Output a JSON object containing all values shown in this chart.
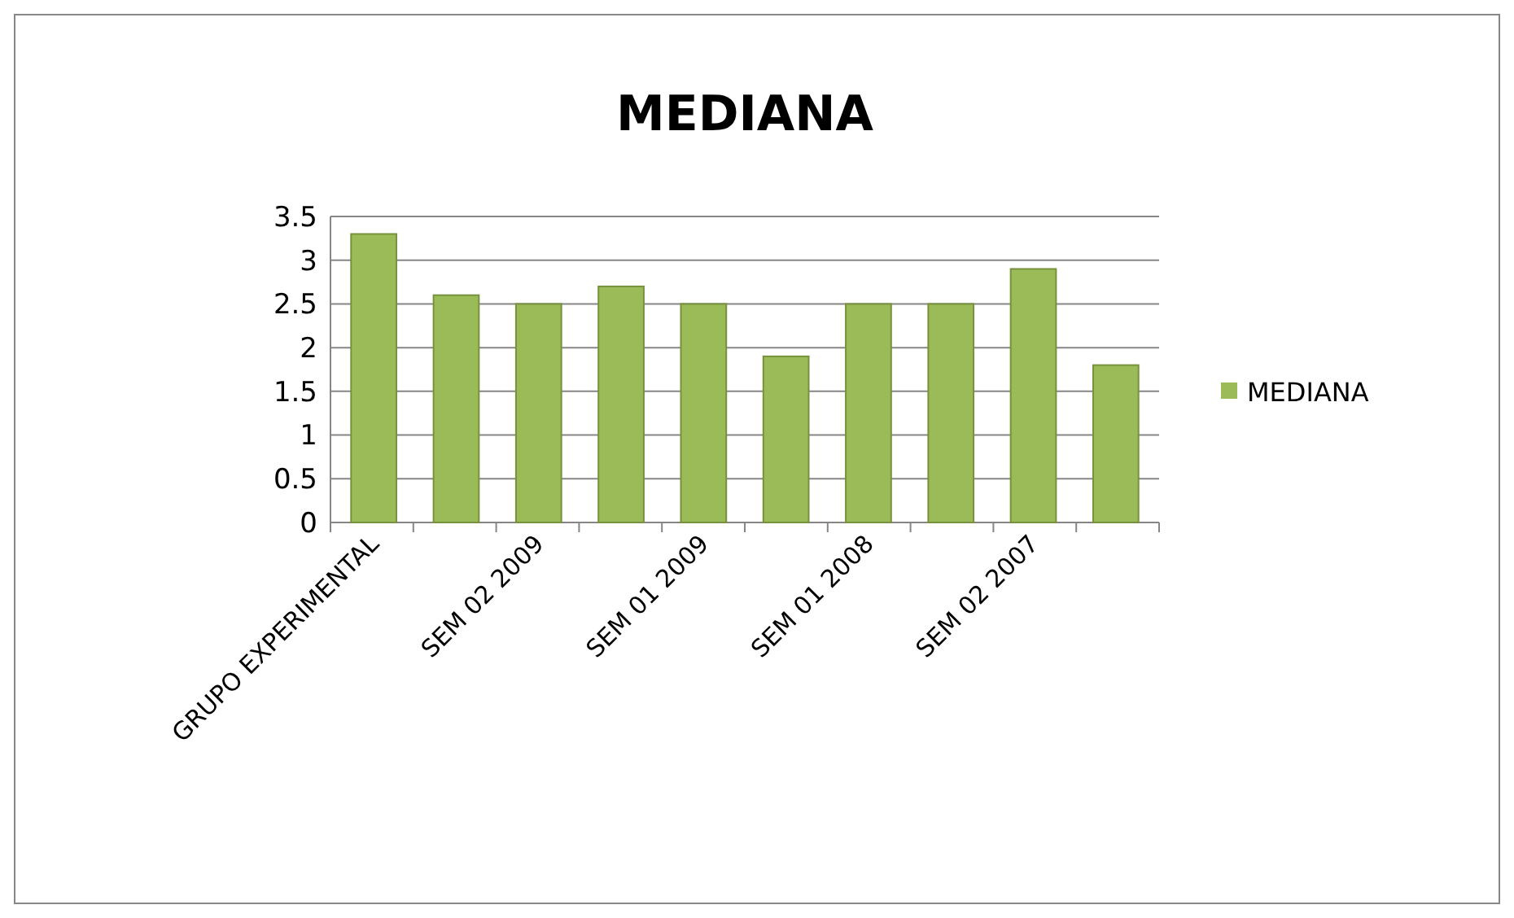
{
  "chart_data": {
    "type": "bar",
    "title": "MEDIANA",
    "categories": [
      "GRUPO EXPERIMENTAL",
      null,
      "SEM 02 2009",
      null,
      "SEM 01 2009",
      null,
      "SEM 01 2008",
      null,
      "SEM 02 2007",
      null
    ],
    "series": [
      {
        "name": "MEDIANA",
        "color": "#9bbb59",
        "values": [
          3.3,
          2.6,
          2.5,
          2.7,
          2.5,
          1.9,
          2.5,
          2.5,
          2.9,
          1.8
        ]
      }
    ],
    "ylim": [
      0,
      3.5
    ],
    "yticks": [
      0,
      0.5,
      1,
      1.5,
      2,
      2.5,
      3,
      3.5
    ],
    "grid": "y",
    "legend": "right"
  }
}
